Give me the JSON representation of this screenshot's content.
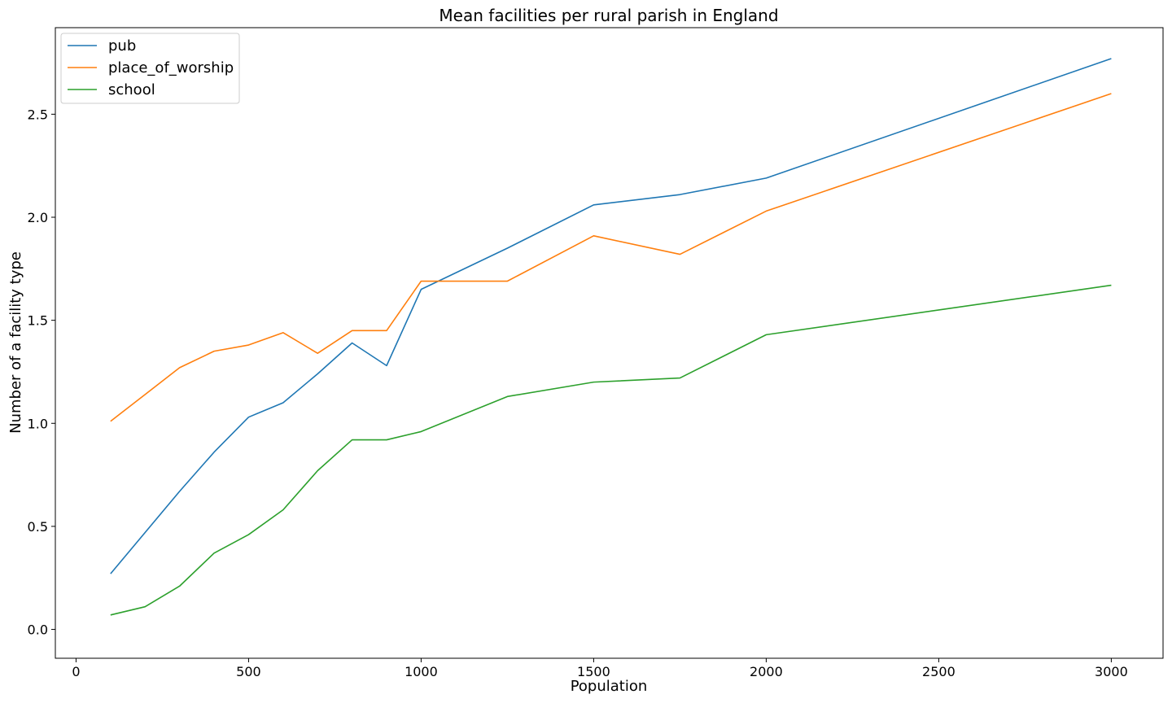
{
  "chart_data": {
    "type": "line",
    "title": "Mean facilities per rural parish in England",
    "xlabel": "Population",
    "ylabel": "Number of a facility type",
    "xlim": [
      -60,
      3150
    ],
    "ylim": [
      -0.14,
      2.92
    ],
    "xticks": [
      0,
      500,
      1000,
      1500,
      2000,
      2500,
      3000
    ],
    "xtick_labels": [
      "0",
      "500",
      "1000",
      "1500",
      "2000",
      "2500",
      "3000"
    ],
    "yticks": [
      0.0,
      0.5,
      1.0,
      1.5,
      2.0,
      2.5
    ],
    "ytick_labels": [
      "0.0",
      "0.5",
      "1.0",
      "1.5",
      "2.0",
      "2.5"
    ],
    "grid": false,
    "legend_position": "top-left",
    "x": [
      100,
      200,
      300,
      400,
      500,
      600,
      700,
      800,
      900,
      1000,
      1250,
      1500,
      1750,
      2000,
      3000
    ],
    "series": [
      {
        "name": "pub",
        "color": "#1f77b4",
        "values": [
          0.27,
          0.47,
          0.67,
          0.86,
          1.03,
          1.1,
          1.24,
          1.39,
          1.28,
          1.65,
          1.85,
          2.06,
          2.11,
          2.19,
          2.77
        ]
      },
      {
        "name": "place_of_worship",
        "color": "#ff7f0e",
        "values": [
          1.01,
          1.14,
          1.27,
          1.35,
          1.38,
          1.44,
          1.34,
          1.45,
          1.45,
          1.69,
          1.69,
          1.91,
          1.82,
          2.03,
          2.6
        ]
      },
      {
        "name": "school",
        "color": "#2ca02c",
        "values": [
          0.07,
          0.11,
          0.21,
          0.37,
          0.46,
          0.58,
          0.77,
          0.92,
          0.92,
          0.96,
          1.13,
          1.2,
          1.22,
          1.43,
          1.67
        ]
      }
    ]
  }
}
